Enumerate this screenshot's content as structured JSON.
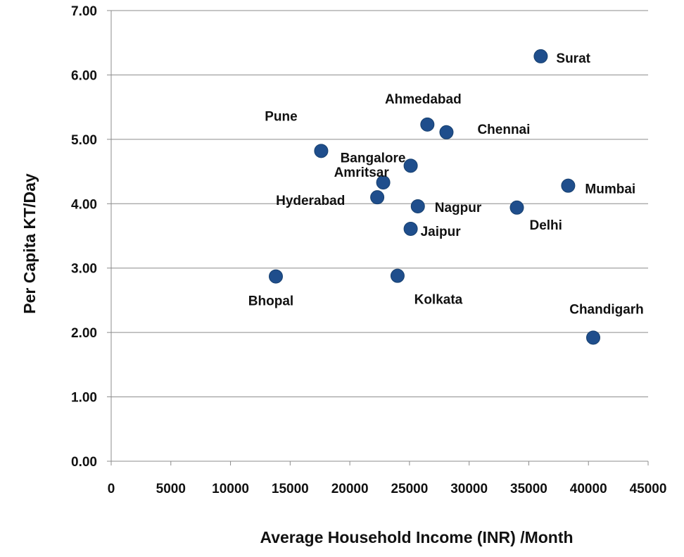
{
  "chart_data": {
    "type": "scatter",
    "xlabel": "Average Household Income (INR) /Month",
    "ylabel": "Per Capita KT/Day",
    "xlim": [
      0,
      45000
    ],
    "ylim": [
      0,
      7
    ],
    "x_ticks": [
      "0",
      "5000",
      "10000",
      "15000",
      "20000",
      "25000",
      "30000",
      "35000",
      "40000",
      "45000"
    ],
    "y_ticks": [
      "0.00",
      "1.00",
      "2.00",
      "3.00",
      "4.00",
      "5.00",
      "6.00",
      "7.00"
    ],
    "grid": "horizontal",
    "legend": "none",
    "marker_color": "#1f4e8c",
    "points": [
      {
        "label": "Surat",
        "x": 36000,
        "y": 6.29
      },
      {
        "label": "Ahmedabad",
        "x": 26500,
        "y": 5.23
      },
      {
        "label": "Chennai",
        "x": 28100,
        "y": 5.11
      },
      {
        "label": "Pune",
        "x": 17600,
        "y": 4.82
      },
      {
        "label": "Bangalore",
        "x": 25100,
        "y": 4.59
      },
      {
        "label": "Amritsar",
        "x": 22800,
        "y": 4.33
      },
      {
        "label": "Mumbai",
        "x": 38300,
        "y": 4.28
      },
      {
        "label": "Hyderabad",
        "x": 22300,
        "y": 4.1
      },
      {
        "label": "Nagpur",
        "x": 25700,
        "y": 3.96
      },
      {
        "label": "Delhi",
        "x": 34000,
        "y": 3.94
      },
      {
        "label": "Jaipur",
        "x": 25100,
        "y": 3.61
      },
      {
        "label": "Bhopal",
        "x": 13800,
        "y": 2.87
      },
      {
        "label": "Kolkata",
        "x": 24000,
        "y": 2.88
      },
      {
        "label": "Chandigarh",
        "x": 40400,
        "y": 1.92
      }
    ]
  }
}
